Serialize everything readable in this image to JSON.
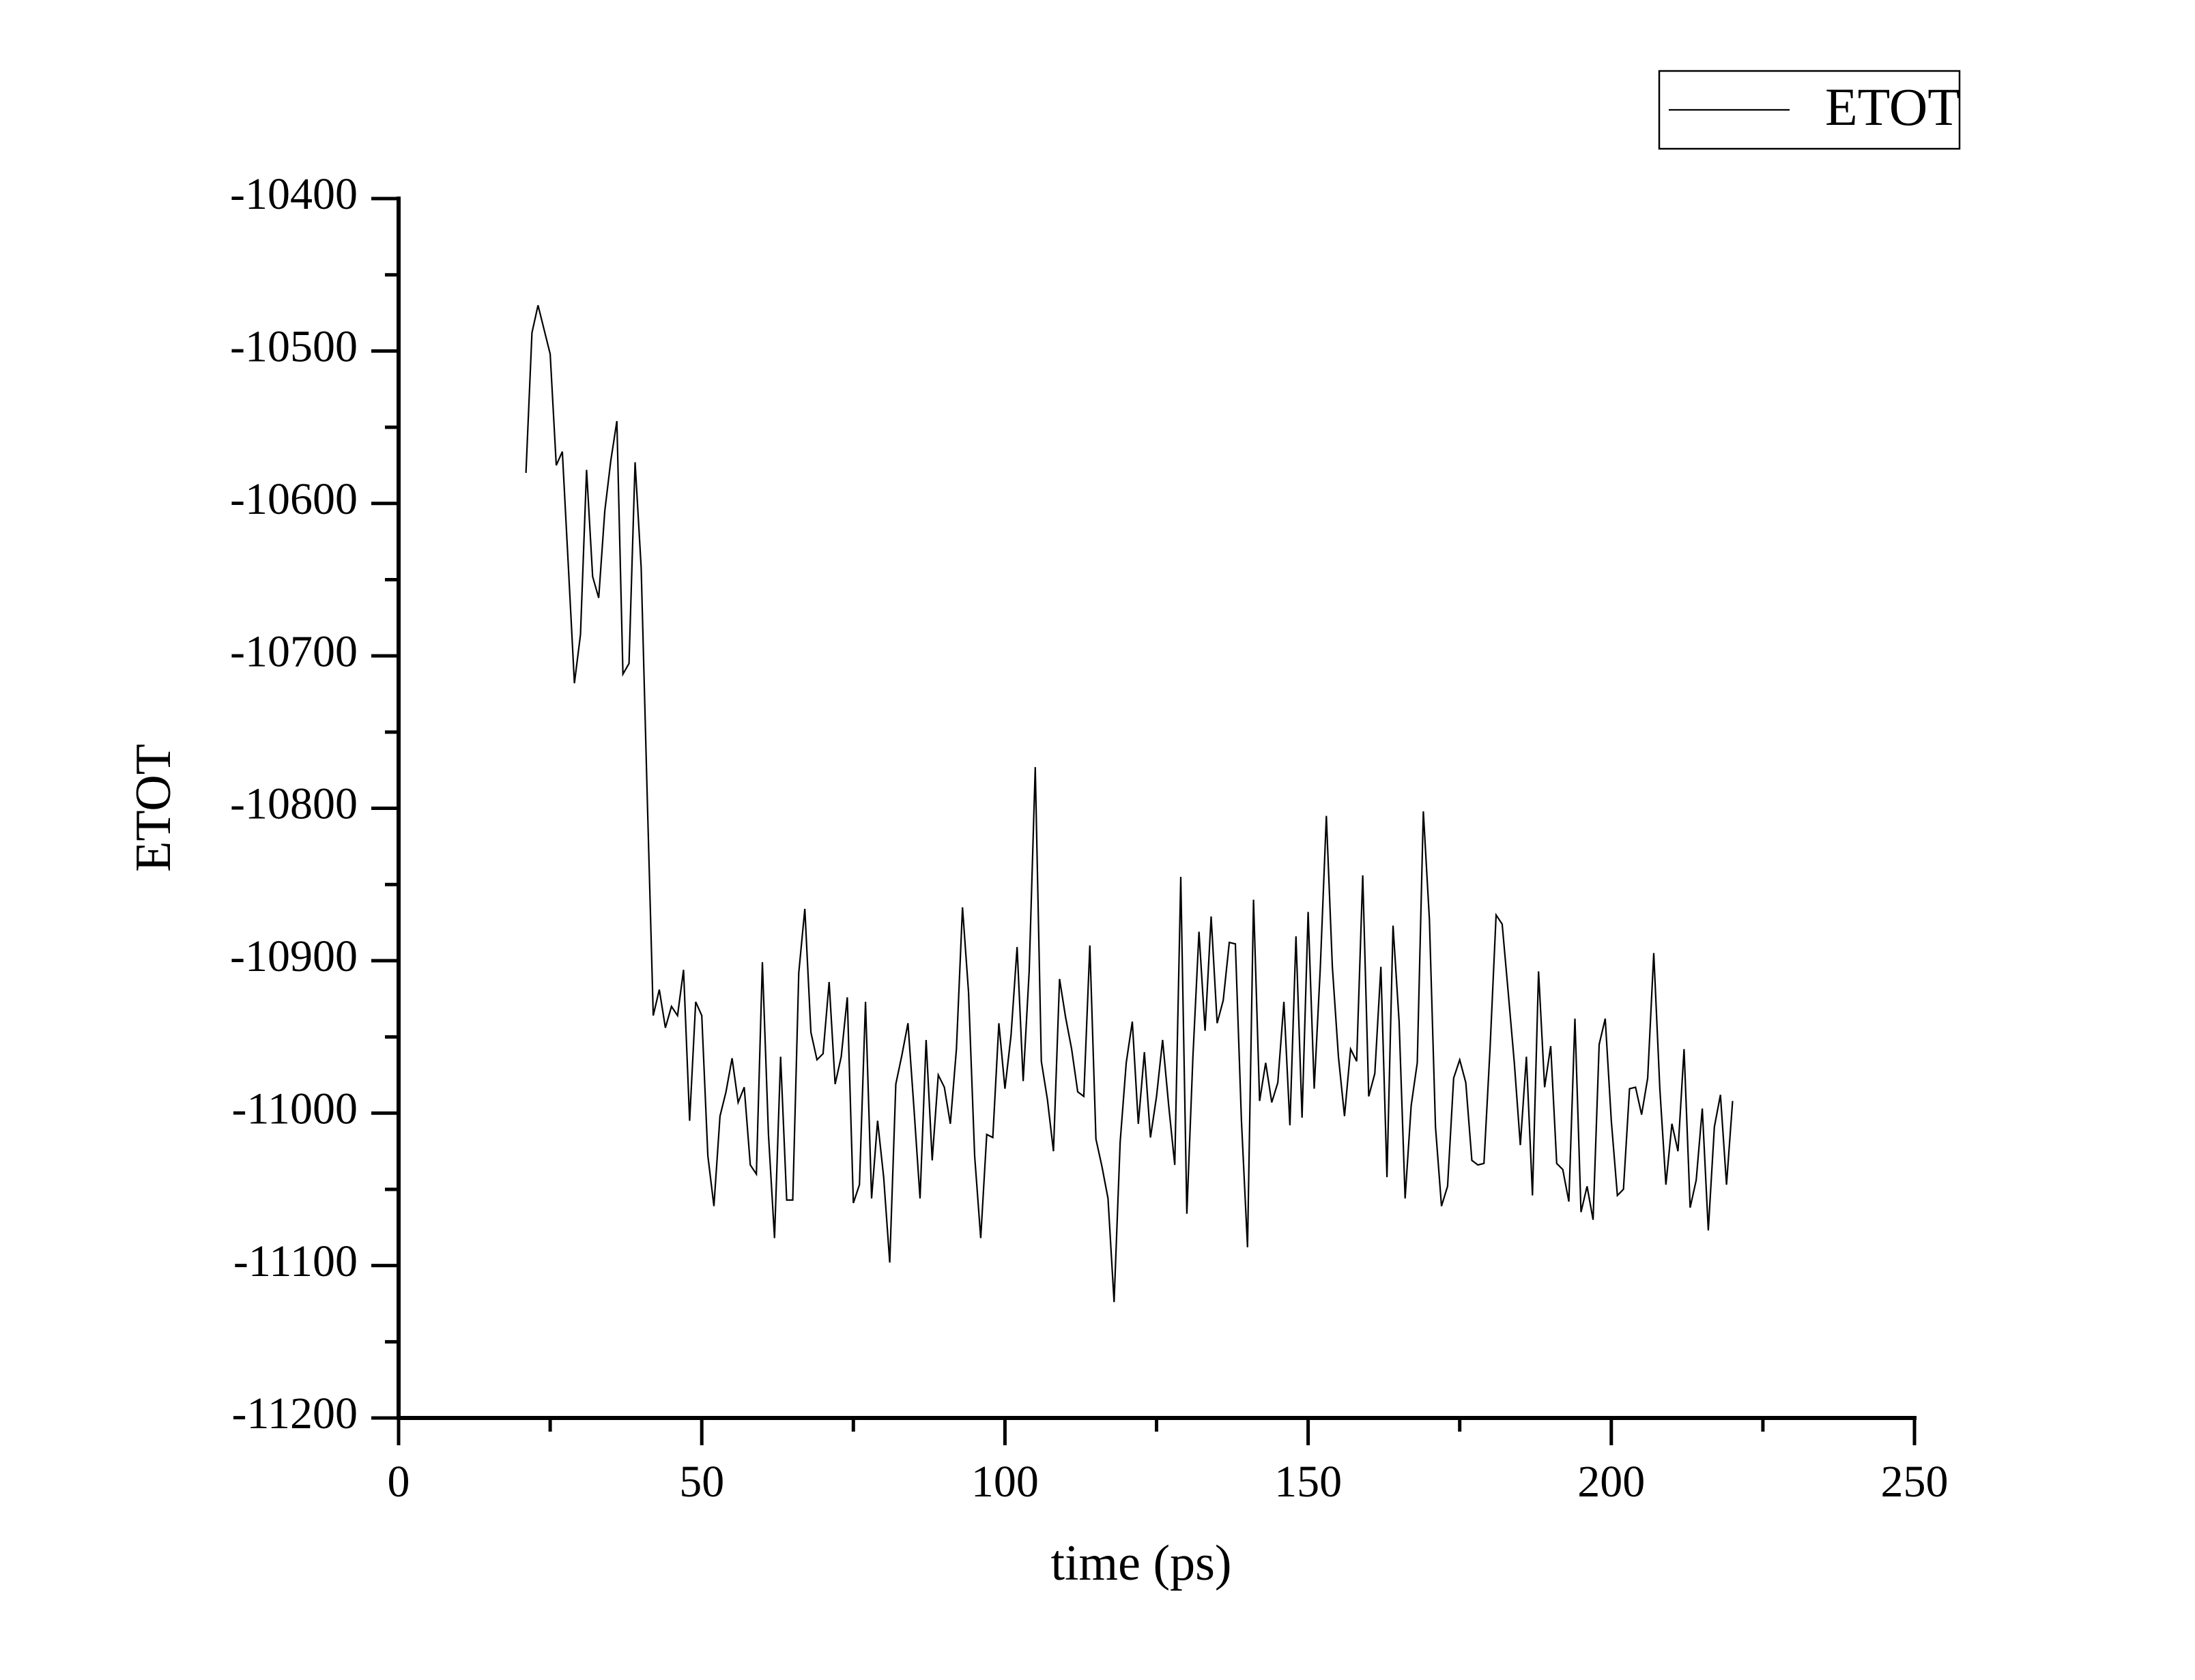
{
  "chart_data": {
    "type": "line",
    "x_label": "time (ps)",
    "y_label": "ETOT",
    "x": [
      21,
      22,
      23,
      24,
      25,
      26,
      27,
      28,
      29,
      30,
      31,
      32,
      33,
      34,
      35,
      36,
      37,
      38,
      39,
      40,
      41,
      42,
      43,
      44,
      45,
      46,
      47,
      48,
      49,
      50,
      51,
      52,
      53,
      54,
      55,
      56,
      57,
      58,
      59,
      60,
      61,
      62,
      63,
      64,
      65,
      66,
      67,
      68,
      69,
      70,
      71,
      72,
      73,
      74,
      75,
      76,
      77,
      78,
      79,
      80,
      81,
      82,
      83,
      84,
      85,
      86,
      87,
      88,
      89,
      90,
      91,
      92,
      93,
      94,
      95,
      96,
      97,
      98,
      99,
      100,
      101,
      102,
      103,
      104,
      105,
      106,
      107,
      108,
      109,
      110,
      111,
      112,
      113,
      114,
      115,
      116,
      117,
      118,
      119,
      120,
      121,
      122,
      123,
      124,
      125,
      126,
      127,
      128,
      129,
      130,
      131,
      132,
      133,
      134,
      135,
      136,
      137,
      138,
      139,
      140,
      141,
      142,
      143,
      144,
      145,
      146,
      147,
      148,
      149,
      150,
      151,
      152,
      153,
      154,
      155,
      156,
      157,
      158,
      159,
      160,
      161,
      162,
      163,
      164,
      165,
      166,
      167,
      168,
      169,
      170,
      171,
      172,
      173,
      174,
      175,
      176,
      177,
      178,
      179,
      180,
      181,
      182,
      183,
      184,
      185,
      186,
      187,
      188,
      189,
      190,
      191,
      192,
      193,
      194,
      195,
      196,
      197,
      198,
      199,
      200,
      201,
      202,
      203,
      204,
      205,
      206,
      207,
      208,
      209,
      210,
      211,
      212,
      213,
      214,
      215,
      216,
      217,
      218,
      219,
      220
    ],
    "series": [
      {
        "name": "ETOT",
        "color": "#000000",
        "values": [
          -10580,
          -10488,
          -10470,
          -10486,
          -10502,
          -10575,
          -10566,
          -10642,
          -10718,
          -10686,
          -10578,
          -10648,
          -10662,
          -10605,
          -10572,
          -10546,
          -10712,
          -10705,
          -10573,
          -10642,
          -10791,
          -10936,
          -10919,
          -10944,
          -10930,
          -10936,
          -10906,
          -11005,
          -10927,
          -10936,
          -11028,
          -11061,
          -11002,
          -10986,
          -10964,
          -10993,
          -10983,
          -11034,
          -11040,
          -10901,
          -11014,
          -11082,
          -10963,
          -11057,
          -11057,
          -10908,
          -10866,
          -10947,
          -10965,
          -10961,
          -10914,
          -10981,
          -10963,
          -10924,
          -11059,
          -11047,
          -10927,
          -11056,
          -11005,
          -11042,
          -11098,
          -10981,
          -10962,
          -10941,
          -10997,
          -11056,
          -10952,
          -11031,
          -10975,
          -10983,
          -11007,
          -10958,
          -10865,
          -10921,
          -11028,
          -11082,
          -11014,
          -11016,
          -10941,
          -10984,
          -10949,
          -10891,
          -10979,
          -10907,
          -10773,
          -10966,
          -10991,
          -11025,
          -10912,
          -10937,
          -10958,
          -10986,
          -10989,
          -10890,
          -11017,
          -11035,
          -11056,
          -11124,
          -11019,
          -10967,
          -10940,
          -11007,
          -10960,
          -11016,
          -10989,
          -10952,
          -10995,
          -11034,
          -10845,
          -11066,
          -10963,
          -10881,
          -10946,
          -10871,
          -10941,
          -10926,
          -10888,
          -10889,
          -11005,
          -11088,
          -10860,
          -10992,
          -10967,
          -10993,
          -10980,
          -10927,
          -11008,
          -10884,
          -11003,
          -10868,
          -10984,
          -10905,
          -10805,
          -10904,
          -10963,
          -11002,
          -10958,
          -10966,
          -10844,
          -10989,
          -10974,
          -10904,
          -11042,
          -10877,
          -10940,
          -11056,
          -10995,
          -10967,
          -10802,
          -10873,
          -11009,
          -11061,
          -11048,
          -10977,
          -10965,
          -10980,
          -11031,
          -11034,
          -11033,
          -10958,
          -10870,
          -10876,
          -10921,
          -10967,
          -11021,
          -10963,
          -11054,
          -10907,
          -10983,
          -10956,
          -11033,
          -11037,
          -11058,
          -10938,
          -11065,
          -11048,
          -11070,
          -10955,
          -10938,
          -11005,
          -11054,
          -11050,
          -10984,
          -10983,
          -11001,
          -10977,
          -10895,
          -10984,
          -11047,
          -11007,
          -11025,
          -10958,
          -11062,
          -11044,
          -10997,
          -11077,
          -11009,
          -10988,
          -11047,
          -10992
        ]
      }
    ],
    "xlim": [
      0,
      250
    ],
    "xticks": [
      0,
      50,
      100,
      150,
      200,
      250
    ],
    "xminorticks": [
      25,
      75,
      125,
      175,
      225
    ],
    "ylim": [
      -11200,
      -10400
    ],
    "yticks": [
      -11200,
      -11100,
      -11000,
      -10900,
      -10800,
      -10700,
      -10600,
      -10500,
      -10400
    ],
    "yminorticks": [
      -11150,
      -11050,
      -10950,
      -10850,
      -10750,
      -10650,
      -10550,
      -10450
    ],
    "grid": false,
    "legend": "upper right"
  }
}
